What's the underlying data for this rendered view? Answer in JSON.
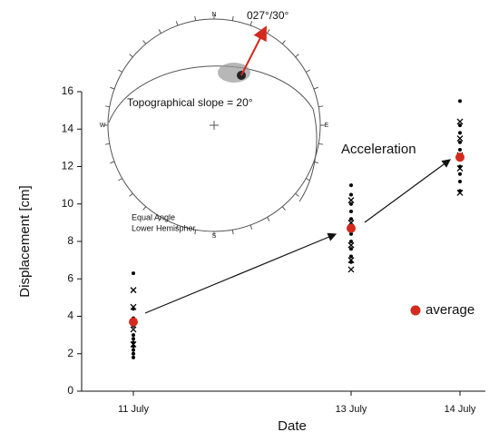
{
  "chart_data": {
    "type": "scatter",
    "x_label": "Date",
    "y_label": "Displacement [cm]",
    "categories": [
      "11 July",
      "13 July",
      "14 July"
    ],
    "ylim": [
      0,
      16
    ],
    "yticks": [
      0,
      2,
      4,
      6,
      8,
      10,
      12,
      14,
      16
    ],
    "legend": "right",
    "series": [
      {
        "marker": "dot",
        "color": "#000000",
        "x": [
          "11 July",
          "11 July",
          "11 July",
          "11 July",
          "11 July",
          "11 July",
          "11 July",
          "11 July",
          "11 July",
          "11 July",
          "11 July",
          "13 July",
          "13 July",
          "13 July",
          "13 July",
          "13 July",
          "13 July",
          "13 July",
          "13 July",
          "13 July",
          "13 July",
          "13 July",
          "14 July",
          "14 July",
          "14 July",
          "14 July",
          "14 July",
          "14 July",
          "14 July",
          "14 July",
          "14 July"
        ],
        "values": [
          6.3,
          4.4,
          3.9,
          3.5,
          3.0,
          2.8,
          2.6,
          2.4,
          2.2,
          2.0,
          1.8,
          11.0,
          10.5,
          10.0,
          9.6,
          9.2,
          8.8,
          8.4,
          8.0,
          7.6,
          7.2,
          6.9,
          15.5,
          14.2,
          13.8,
          13.3,
          12.9,
          12.0,
          11.6,
          11.2,
          10.7
        ]
      },
      {
        "marker": "cross",
        "color": "#000000",
        "x": [
          "11 July",
          "11 July",
          "11 July",
          "11 July",
          "13 July",
          "13 July",
          "13 July",
          "13 July",
          "13 July",
          "14 July",
          "14 July",
          "14 July",
          "14 July",
          "14 July"
        ],
        "values": [
          5.4,
          4.5,
          3.3,
          2.5,
          10.2,
          9.0,
          7.8,
          7.0,
          6.5,
          14.4,
          13.5,
          12.6,
          11.9,
          10.6
        ]
      },
      {
        "name": "average",
        "marker": "dot",
        "color": "#d42a1e",
        "x": [
          "11 July",
          "13 July",
          "14 July"
        ],
        "values": [
          3.7,
          8.7,
          12.5
        ]
      }
    ],
    "annotations": [
      "Acceleration"
    ],
    "inset": {
      "north": "N",
      "east": "E",
      "south": "S",
      "west": "W",
      "vector": "027°/30°",
      "slope": "Topographical slope = 20°",
      "projection": [
        "Equal Angle",
        "Lower Hemispher"
      ]
    }
  }
}
